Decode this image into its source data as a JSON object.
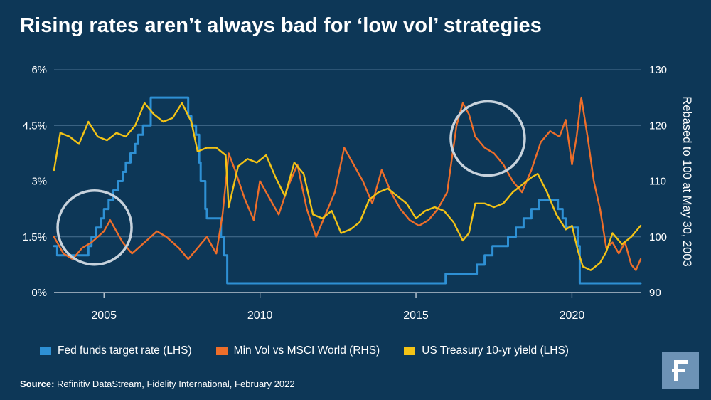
{
  "title": "Rising rates aren’t always bad for ‘low vol’ strategies",
  "source": {
    "label": "Source:",
    "text": "Refinitiv DataStream, Fidelity International, February 2022"
  },
  "colors": {
    "background": "#0d3757",
    "fed": "#2e90d4",
    "minvol": "#ee6e2a",
    "treasury": "#f3c316",
    "gridline": "#4a7090",
    "circle": "#c7d2dc",
    "logo_bg": "#6d93b6"
  },
  "logo_icon": "fidelity-f-icon",
  "chart_data": {
    "type": "line",
    "x_ticks": [
      "2005",
      "2010",
      "2015",
      "2020"
    ],
    "x_tick_values": [
      2005,
      2010,
      2015,
      2020
    ],
    "xlim": [
      2003.4,
      2022.2
    ],
    "y_left": {
      "ticks": [
        "0%",
        "1.5%",
        "3%",
        "4.5%",
        "6%"
      ],
      "tick_values": [
        0,
        1.5,
        3,
        4.5,
        6
      ],
      "ylim": [
        0,
        6
      ]
    },
    "y_right": {
      "ticks": [
        "90",
        "100",
        "110",
        "120",
        "130"
      ],
      "tick_values": [
        90,
        100,
        110,
        120,
        130
      ],
      "ylim": [
        90,
        130
      ],
      "label": "Rebased to 100 at May 30, 2003"
    },
    "legend_position": "bottom",
    "grid": "horizontal",
    "series": [
      {
        "name": "Fed funds target rate (LHS)",
        "axis": "left",
        "step": true,
        "x": [
          2003.4,
          2003.5,
          2004.5,
          2004.6,
          2004.75,
          2004.9,
          2005.0,
          2005.15,
          2005.3,
          2005.45,
          2005.6,
          2005.7,
          2005.85,
          2006.0,
          2006.1,
          2006.25,
          2006.5,
          2007.6,
          2007.7,
          2007.8,
          2007.95,
          2008.05,
          2008.1,
          2008.25,
          2008.3,
          2008.75,
          2008.85,
          2008.95,
          2015.95,
          2016.95,
          2017.2,
          2017.45,
          2017.95,
          2018.2,
          2018.45,
          2018.7,
          2018.95,
          2019.55,
          2019.7,
          2019.8,
          2020.2,
          2020.25,
          2022.2
        ],
        "y": [
          1.25,
          1.0,
          1.25,
          1.5,
          1.75,
          2.0,
          2.25,
          2.5,
          2.75,
          3.0,
          3.25,
          3.5,
          3.75,
          4.0,
          4.25,
          4.5,
          5.25,
          5.25,
          4.75,
          4.5,
          4.25,
          3.5,
          3.0,
          2.25,
          2.0,
          1.5,
          1.0,
          0.25,
          0.5,
          0.75,
          1.0,
          1.25,
          1.5,
          1.75,
          2.0,
          2.25,
          2.5,
          2.25,
          2.0,
          1.75,
          1.25,
          0.25,
          0.25
        ]
      },
      {
        "name": "Min Vol vs MSCI World (RHS)",
        "axis": "right",
        "x": [
          2003.4,
          2003.7,
          2004.0,
          2004.3,
          2004.6,
          2005.0,
          2005.2,
          2005.6,
          2005.9,
          2006.3,
          2006.7,
          2007.0,
          2007.4,
          2007.7,
          2008.0,
          2008.3,
          2008.6,
          2008.8,
          2009.0,
          2009.2,
          2009.5,
          2009.8,
          2010.0,
          2010.3,
          2010.6,
          2010.9,
          2011.2,
          2011.5,
          2011.8,
          2012.1,
          2012.4,
          2012.7,
          2013.0,
          2013.3,
          2013.6,
          2013.9,
          2014.2,
          2014.5,
          2014.8,
          2015.1,
          2015.4,
          2015.7,
          2016.0,
          2016.3,
          2016.5,
          2016.7,
          2016.9,
          2017.2,
          2017.5,
          2017.8,
          2018.1,
          2018.4,
          2018.7,
          2019.0,
          2019.3,
          2019.6,
          2019.8,
          2020.0,
          2020.15,
          2020.3,
          2020.5,
          2020.7,
          2020.9,
          2021.1,
          2021.3,
          2021.5,
          2021.7,
          2021.9,
          2022.05,
          2022.2
        ],
        "y": [
          100,
          97,
          96,
          98,
          99,
          101,
          103,
          99,
          97,
          99,
          101,
          100,
          98,
          96,
          98,
          100,
          97,
          104,
          115,
          112,
          107,
          103,
          110,
          107,
          104,
          109,
          113,
          105,
          100,
          104,
          108,
          116,
          113,
          110,
          106,
          112,
          108,
          105,
          103,
          102,
          103,
          105,
          108,
          120,
          124,
          122,
          118,
          116,
          115,
          113,
          110,
          108,
          112,
          117,
          119,
          118,
          121,
          113,
          118,
          125,
          118,
          110,
          105,
          98,
          99,
          97,
          99,
          95,
          94,
          96
        ]
      },
      {
        "name": "US Treasury 10-yr yield (LHS)",
        "axis": "left",
        "x": [
          2003.4,
          2003.6,
          2003.9,
          2004.2,
          2004.5,
          2004.8,
          2005.1,
          2005.4,
          2005.7,
          2006.0,
          2006.3,
          2006.6,
          2006.9,
          2007.2,
          2007.5,
          2007.8,
          2008.0,
          2008.3,
          2008.6,
          2008.9,
          2009.0,
          2009.3,
          2009.6,
          2009.9,
          2010.2,
          2010.5,
          2010.8,
          2011.1,
          2011.4,
          2011.7,
          2012.0,
          2012.3,
          2012.6,
          2012.9,
          2013.2,
          2013.5,
          2013.8,
          2014.1,
          2014.4,
          2014.7,
          2015.0,
          2015.3,
          2015.6,
          2015.9,
          2016.2,
          2016.5,
          2016.7,
          2016.9,
          2017.2,
          2017.5,
          2017.8,
          2018.1,
          2018.4,
          2018.7,
          2018.9,
          2019.2,
          2019.5,
          2019.8,
          2020.0,
          2020.2,
          2020.35,
          2020.6,
          2020.9,
          2021.1,
          2021.3,
          2021.6,
          2021.9,
          2022.2
        ],
        "y": [
          3.3,
          4.3,
          4.2,
          4.0,
          4.6,
          4.2,
          4.1,
          4.3,
          4.2,
          4.5,
          5.1,
          4.8,
          4.6,
          4.7,
          5.1,
          4.6,
          3.8,
          3.9,
          3.9,
          3.7,
          2.3,
          3.4,
          3.6,
          3.5,
          3.7,
          3.1,
          2.6,
          3.5,
          3.2,
          2.1,
          2.0,
          2.2,
          1.6,
          1.7,
          1.9,
          2.5,
          2.7,
          2.8,
          2.6,
          2.4,
          2.0,
          2.2,
          2.3,
          2.2,
          1.9,
          1.4,
          1.6,
          2.4,
          2.4,
          2.3,
          2.4,
          2.7,
          2.9,
          3.1,
          3.2,
          2.7,
          2.1,
          1.7,
          1.8,
          1.1,
          0.7,
          0.6,
          0.8,
          1.1,
          1.6,
          1.3,
          1.5,
          1.8
        ]
      }
    ]
  },
  "annotations": [
    {
      "name": "circle-2004",
      "year": 2004.7,
      "value": 1.75,
      "axis": "left"
    },
    {
      "name": "circle-2017",
      "year": 2017.3,
      "value": 4.15,
      "axis": "left"
    }
  ]
}
